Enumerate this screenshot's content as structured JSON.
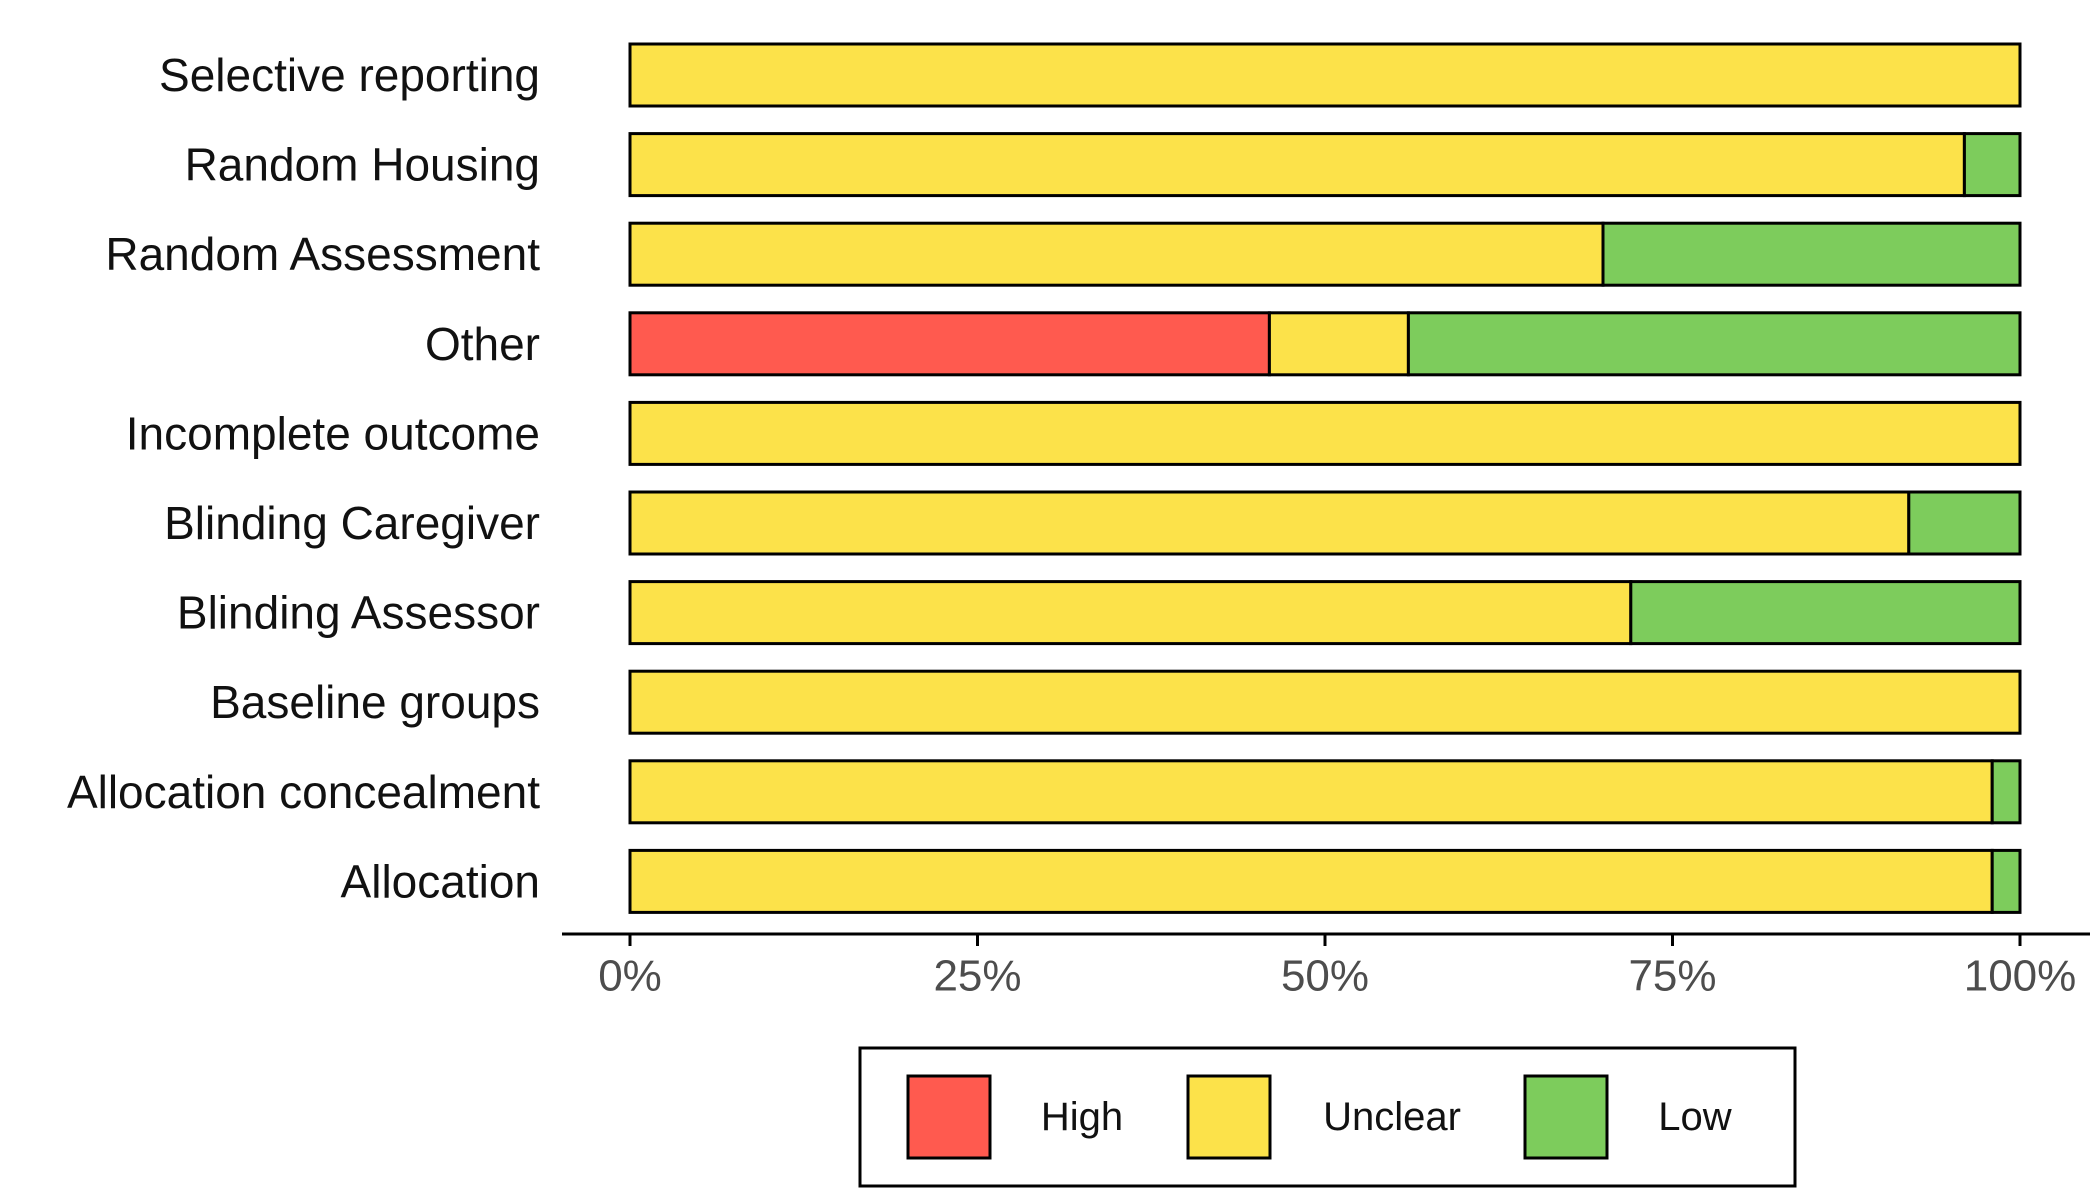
{
  "chart_data": {
    "type": "bar",
    "stacked": true,
    "orientation": "horizontal",
    "categories": [
      "Selective reporting",
      "Random Housing",
      "Random Assessment",
      "Other",
      "Incomplete outcome",
      "Blinding Caregiver",
      "Blinding Assessor",
      "Baseline groups",
      "Allocation concealment",
      "Allocation"
    ],
    "series": [
      {
        "name": "High",
        "color": "#ff5a4f",
        "values": [
          0,
          0,
          0,
          46,
          0,
          0,
          0,
          0,
          0,
          0
        ]
      },
      {
        "name": "Unclear",
        "color": "#fce24a",
        "values": [
          100,
          96,
          70,
          10,
          100,
          92,
          72,
          100,
          98,
          98
        ]
      },
      {
        "name": "Low",
        "color": "#7dcc5c",
        "values": [
          0,
          4,
          30,
          44,
          0,
          8,
          28,
          0,
          2,
          2
        ]
      }
    ],
    "xlim": [
      0,
      100
    ],
    "xticks": [
      0,
      25,
      50,
      75,
      100
    ],
    "xtick_labels": [
      "0%",
      "25%",
      "50%",
      "75%",
      "100%"
    ],
    "title": "",
    "xlabel": "",
    "ylabel": "",
    "grid": false,
    "legend_position": "bottom"
  }
}
